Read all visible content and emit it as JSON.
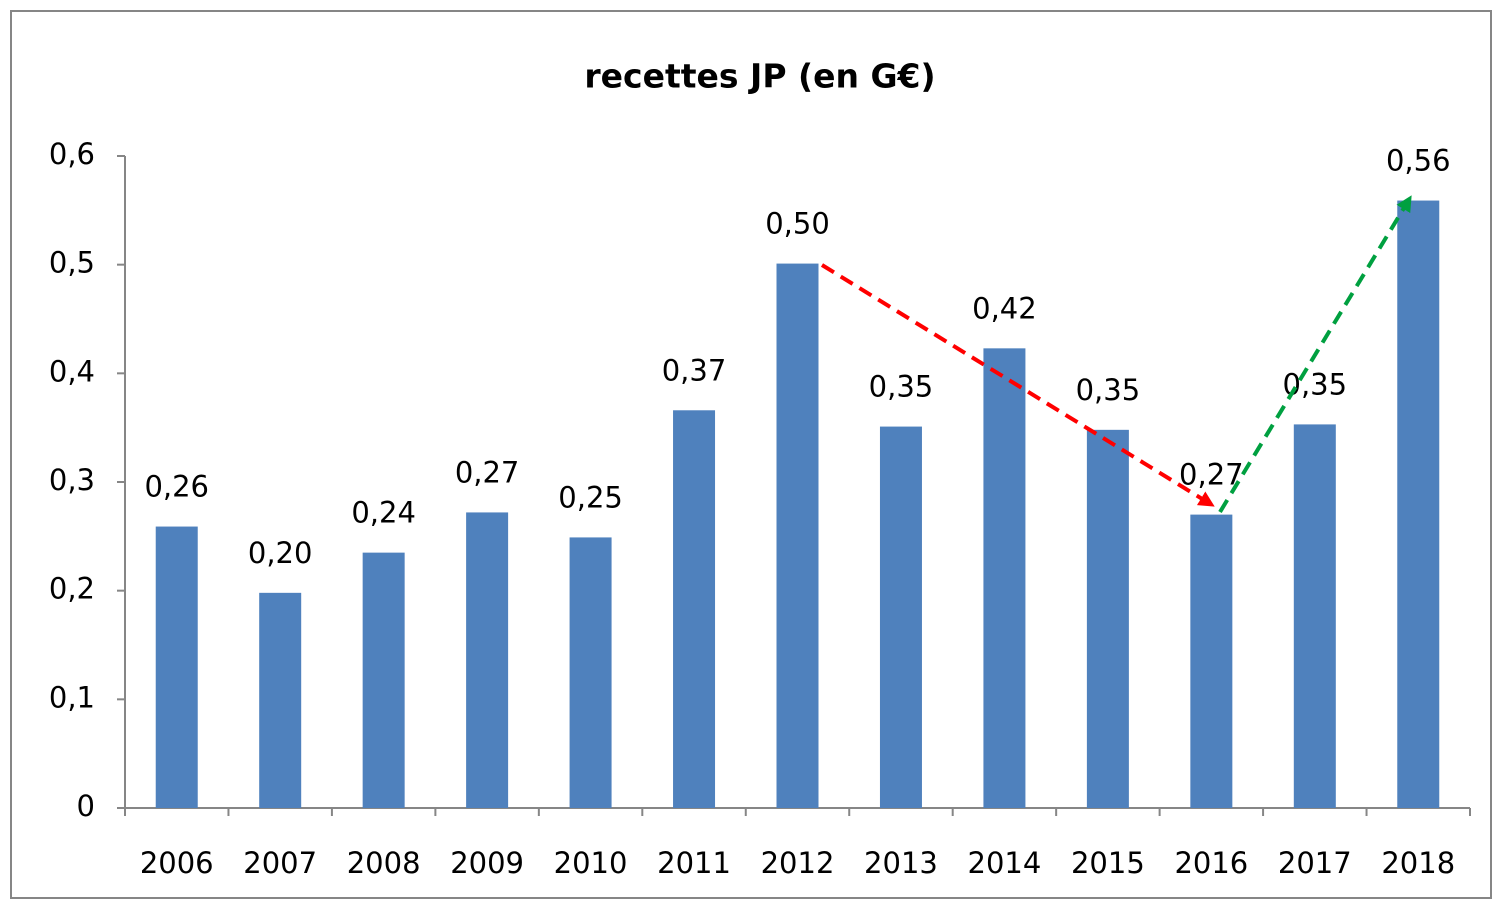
{
  "chart_data": {
    "type": "bar",
    "title": "recettes JP (en G€)",
    "categories": [
      "2006",
      "2007",
      "2008",
      "2009",
      "2010",
      "2011",
      "2012",
      "2013",
      "2014",
      "2015",
      "2016",
      "2017",
      "2018"
    ],
    "values": [
      0.259,
      0.198,
      0.235,
      0.272,
      0.249,
      0.366,
      0.501,
      0.351,
      0.423,
      0.348,
      0.27,
      0.353,
      0.559
    ],
    "value_labels": [
      "0,26",
      "0,20",
      "0,24",
      "0,27",
      "0,25",
      "0,37",
      "0,50",
      "0,35",
      "0,42",
      "0,35",
      "0,27",
      "0,35",
      "0,56"
    ],
    "color": "#4f81bd",
    "ylim": [
      0,
      0.6
    ],
    "yticks": [
      0,
      {
        "value": 0.1,
        "label": "0,1"
      },
      {
        "value": 0.2,
        "label": "0,2"
      },
      {
        "value": 0.3,
        "label": "0,3"
      },
      {
        "value": 0.4,
        "label": "0,4"
      },
      {
        "value": 0.5,
        "label": "0,5"
      },
      {
        "value": 0.6,
        "label": "0,6"
      }
    ],
    "grid": false
  }
}
